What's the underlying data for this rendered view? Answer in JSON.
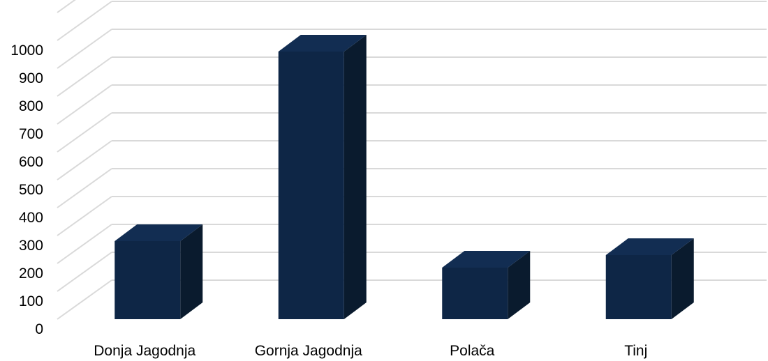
{
  "chart_data": {
    "type": "bar",
    "categories": [
      "Donja Jagodnja",
      "Gornja Jagodnja",
      "Polača",
      "Tinj"
    ],
    "values": [
      280,
      960,
      185,
      230
    ],
    "ylim": [
      0,
      1000
    ],
    "ytick_step": 100,
    "yticks": [
      "0",
      "100",
      "200",
      "300",
      "400",
      "500",
      "600",
      "700",
      "800",
      "900",
      "1000"
    ],
    "grid": true,
    "three_d": true,
    "colors": {
      "bar_front": "#0e2646",
      "bar_top": "#122d52",
      "bar_side": "#0a1b2e",
      "grid": "#d9d9d9"
    }
  }
}
